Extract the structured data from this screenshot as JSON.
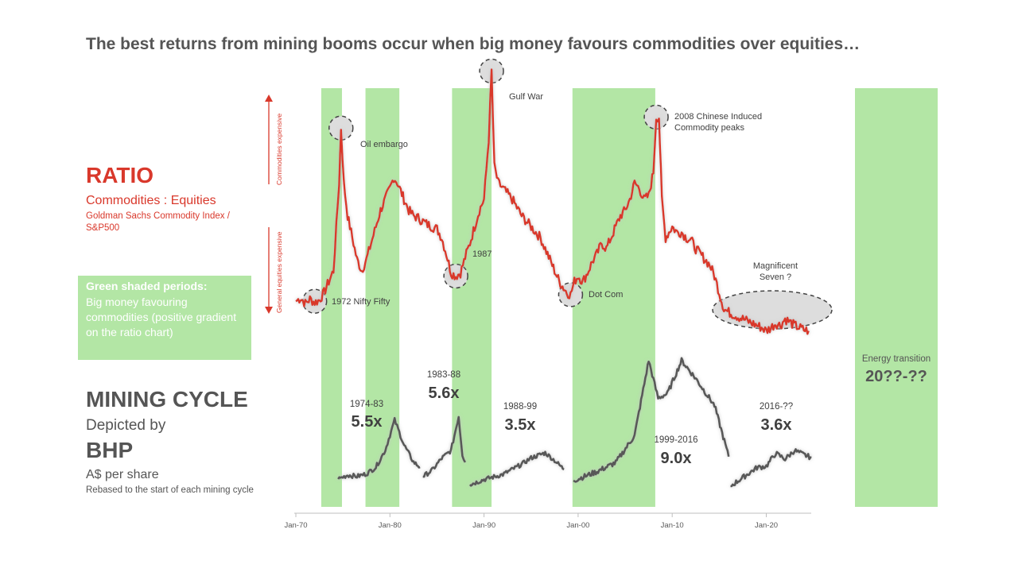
{
  "title": "The best returns from mining booms occur when big money favours commodities over equities…",
  "ratio_panel": {
    "heading": "RATIO",
    "subtitle": "Commodities : Equities",
    "note": "Goldman Sachs Commodity Index / S&P500",
    "arrow_up_label": "Commodities expensive",
    "arrow_down_label": "General equities expensive"
  },
  "green_legend": {
    "heading": "Green shaded periods:",
    "body": "Big money favouring commodities (positive gradient on the ratio chart)"
  },
  "mining_panel": {
    "heading": "MINING CYCLE",
    "depicted": "Depicted by",
    "company": "BHP",
    "unit": "A$ per share",
    "note": "Rebased to the start of each mining cycle"
  },
  "energy_transition": {
    "label": "Energy transition",
    "years": "20??-??"
  },
  "colors": {
    "ratio_line": "#d9382b",
    "bhp_line": "#595959",
    "green_band": "#b3e6a5",
    "highlight": "#dddddd"
  },
  "chart_data": {
    "type": "line",
    "x_axis": {
      "ticks": [
        {
          "year": 1970,
          "label": "Jan-70"
        },
        {
          "year": 1980,
          "label": "Jan-80"
        },
        {
          "year": 1990,
          "label": "Jan-90"
        },
        {
          "year": 2000,
          "label": "Jan-00"
        },
        {
          "year": 2010,
          "label": "Jan-10"
        },
        {
          "year": 2020,
          "label": "Jan-20"
        }
      ],
      "range": [
        1970,
        2025
      ]
    },
    "green_periods": [
      [
        1972.7,
        1974.9
      ],
      [
        1977.4,
        1981.0
      ],
      [
        1986.6,
        1990.8
      ],
      [
        1999.4,
        2008.2
      ]
    ],
    "ratio_series": {
      "name": "Commodities : Equities",
      "points": [
        [
          1970.0,
          82
        ],
        [
          1970.5,
          85
        ],
        [
          1971.0,
          80
        ],
        [
          1971.5,
          84
        ],
        [
          1972.0,
          81
        ],
        [
          1972.5,
          83
        ],
        [
          1973.0,
          90
        ],
        [
          1973.5,
          100
        ],
        [
          1974.0,
          110
        ],
        [
          1974.3,
          150
        ],
        [
          1974.6,
          190
        ],
        [
          1974.8,
          240
        ],
        [
          1975.1,
          190
        ],
        [
          1975.5,
          160
        ],
        [
          1976.0,
          140
        ],
        [
          1976.5,
          120
        ],
        [
          1977.0,
          110
        ],
        [
          1977.5,
          120
        ],
        [
          1978.0,
          135
        ],
        [
          1978.5,
          150
        ],
        [
          1979.0,
          165
        ],
        [
          1979.5,
          175
        ],
        [
          1980.0,
          185
        ],
        [
          1980.4,
          195
        ],
        [
          1980.8,
          190
        ],
        [
          1981.5,
          175
        ],
        [
          1982.0,
          165
        ],
        [
          1982.5,
          160
        ],
        [
          1983.0,
          158
        ],
        [
          1983.5,
          155
        ],
        [
          1984.0,
          152
        ],
        [
          1984.5,
          150
        ],
        [
          1985.0,
          148
        ],
        [
          1985.5,
          140
        ],
        [
          1986.0,
          125
        ],
        [
          1986.5,
          108
        ],
        [
          1987.0,
          105
        ],
        [
          1987.5,
          108
        ],
        [
          1988.0,
          122
        ],
        [
          1988.5,
          135
        ],
        [
          1989.0,
          150
        ],
        [
          1989.5,
          165
        ],
        [
          1990.0,
          175
        ],
        [
          1990.5,
          230
        ],
        [
          1990.8,
          292
        ],
        [
          1991.1,
          205
        ],
        [
          1991.5,
          190
        ],
        [
          1992.0,
          185
        ],
        [
          1993.0,
          175
        ],
        [
          1994.0,
          160
        ],
        [
          1995.0,
          150
        ],
        [
          1996.0,
          140
        ],
        [
          1997.0,
          120
        ],
        [
          1998.0,
          100
        ],
        [
          1998.8,
          90
        ],
        [
          1999.2,
          88
        ],
        [
          1999.6,
          100
        ],
        [
          2000.0,
          105
        ],
        [
          2000.5,
          100
        ],
        [
          2001.0,
          108
        ],
        [
          2001.5,
          118
        ],
        [
          2002.0,
          125
        ],
        [
          2002.5,
          135
        ],
        [
          2003.0,
          130
        ],
        [
          2003.5,
          140
        ],
        [
          2004.0,
          150
        ],
        [
          2004.5,
          160
        ],
        [
          2005.0,
          165
        ],
        [
          2005.5,
          175
        ],
        [
          2006.0,
          190
        ],
        [
          2006.5,
          185
        ],
        [
          2007.0,
          175
        ],
        [
          2007.5,
          178
        ],
        [
          2008.0,
          200
        ],
        [
          2008.3,
          250
        ],
        [
          2008.6,
          250
        ],
        [
          2008.9,
          175
        ],
        [
          2009.3,
          140
        ],
        [
          2010.0,
          150
        ],
        [
          2010.5,
          145
        ],
        [
          2011.0,
          145
        ],
        [
          2011.5,
          140
        ],
        [
          2012.0,
          138
        ],
        [
          2012.5,
          130
        ],
        [
          2013.0,
          125
        ],
        [
          2013.5,
          120
        ],
        [
          2014.0,
          115
        ],
        [
          2014.5,
          105
        ],
        [
          2015.0,
          90
        ],
        [
          2015.5,
          75
        ],
        [
          2016.0,
          72
        ],
        [
          2016.5,
          70
        ],
        [
          2017.0,
          68
        ],
        [
          2017.5,
          66
        ],
        [
          2018.0,
          64
        ],
        [
          2018.5,
          62
        ],
        [
          2019.0,
          60
        ],
        [
          2019.5,
          58
        ],
        [
          2020.0,
          55
        ],
        [
          2020.5,
          58
        ],
        [
          2021.0,
          62
        ],
        [
          2021.5,
          60
        ],
        [
          2022.0,
          66
        ],
        [
          2022.5,
          63
        ],
        [
          2023.0,
          60
        ],
        [
          2023.5,
          58
        ],
        [
          2024.0,
          56
        ],
        [
          2024.5,
          55
        ]
      ]
    },
    "ratio_annotations": [
      {
        "label": "1972 Nifty Fifty",
        "year": 1972.0,
        "value": 82
      },
      {
        "label": "Oil embargo",
        "year": 1974.8,
        "value": 240
      },
      {
        "label": "1987",
        "year": 1987.0,
        "value": 105
      },
      {
        "label": "Gulf War",
        "year": 1990.8,
        "value": 292
      },
      {
        "label": "Dot Com",
        "year": 1999.2,
        "value": 88
      },
      {
        "label": "2008 Chinese Induced Commodity peaks",
        "year": 2008.3,
        "value": 250
      },
      {
        "label": "Magnificent Seven ?",
        "year": 2020.0,
        "value": 55
      }
    ],
    "bhp_series": [
      {
        "name": "1974-83",
        "multiple": "5.5x",
        "points": [
          [
            1974.5,
            1.0
          ],
          [
            1975.5,
            1.3
          ],
          [
            1976.5,
            1.2
          ],
          [
            1977.5,
            1.4
          ],
          [
            1978.5,
            1.9
          ],
          [
            1979.5,
            3.2
          ],
          [
            1980.5,
            5.5
          ],
          [
            1981.5,
            3.6
          ],
          [
            1982.5,
            2.3
          ],
          [
            1983.2,
            1.9
          ]
        ]
      },
      {
        "name": "1983-88",
        "multiple": "5.6x",
        "points": [
          [
            1983.5,
            1.0
          ],
          [
            1984.5,
            1.5
          ],
          [
            1985.5,
            2.4
          ],
          [
            1986.5,
            3.0
          ],
          [
            1987.3,
            5.6
          ],
          [
            1987.7,
            2.7
          ],
          [
            1988.0,
            2.1
          ]
        ]
      },
      {
        "name": "1988-99",
        "multiple": "3.5x",
        "points": [
          [
            1988.5,
            1.0
          ],
          [
            1990.0,
            1.4
          ],
          [
            1992.0,
            1.8
          ],
          [
            1994.0,
            2.6
          ],
          [
            1995.0,
            3.1
          ],
          [
            1996.5,
            3.5
          ],
          [
            1997.5,
            2.9
          ],
          [
            1998.5,
            2.2
          ]
        ]
      },
      {
        "name": "1999-2016",
        "multiple": "9.0x",
        "points": [
          [
            1999.5,
            1.0
          ],
          [
            2002.0,
            1.6
          ],
          [
            2004.0,
            2.2
          ],
          [
            2006.0,
            4.0
          ],
          [
            2007.5,
            9.0
          ],
          [
            2008.5,
            6.5
          ],
          [
            2009.5,
            6.8
          ],
          [
            2011.0,
            9.0
          ],
          [
            2012.5,
            7.8
          ],
          [
            2014.5,
            6.0
          ],
          [
            2016.0,
            2.6
          ]
        ]
      },
      {
        "name": "2016-??",
        "multiple": "3.6x",
        "points": [
          [
            2016.2,
            1.0
          ],
          [
            2017.5,
            1.6
          ],
          [
            2019.0,
            2.3
          ],
          [
            2020.0,
            2.4
          ],
          [
            2021.0,
            3.3
          ],
          [
            2022.0,
            2.9
          ],
          [
            2023.0,
            3.5
          ],
          [
            2024.0,
            3.2
          ],
          [
            2024.8,
            3.0
          ]
        ]
      }
    ]
  }
}
